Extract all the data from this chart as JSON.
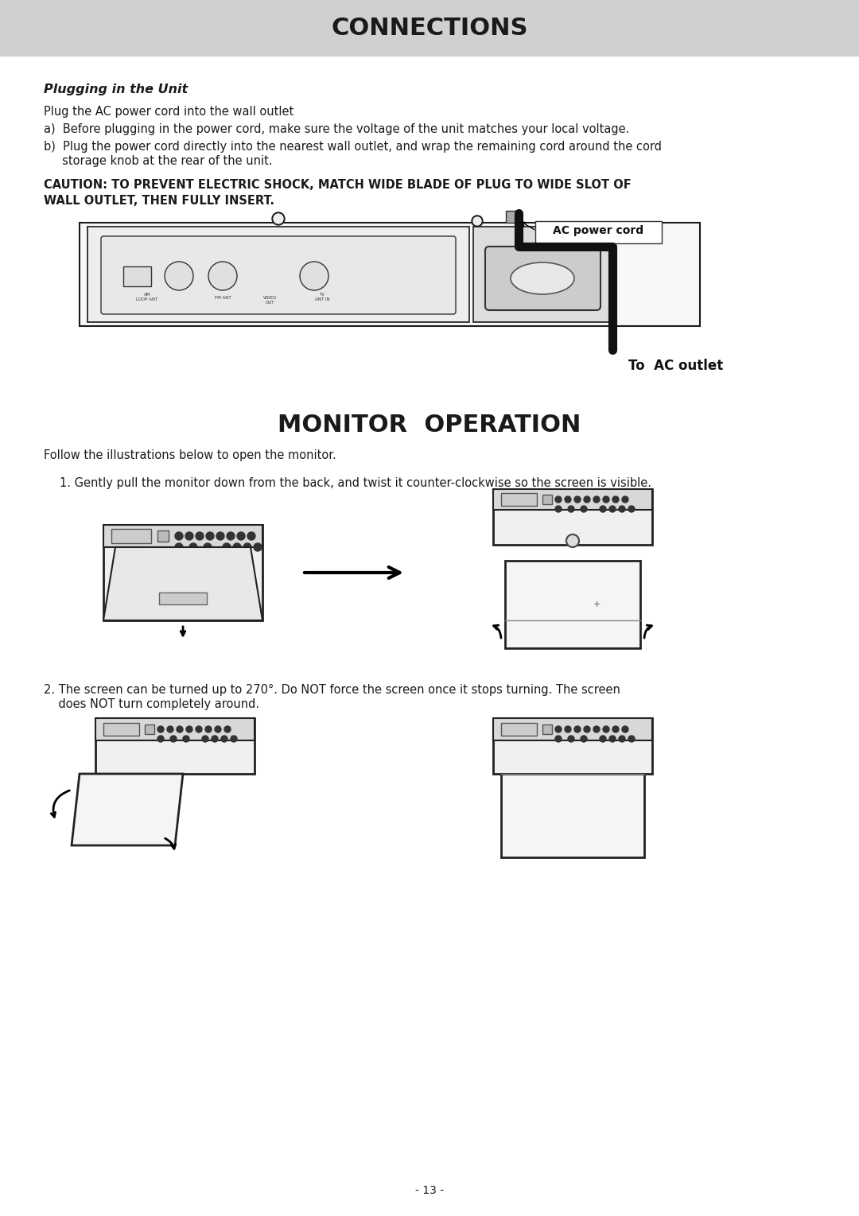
{
  "page_bg": "#ffffff",
  "header_bg": "#d0d0d0",
  "header_text": "CONNECTIONS",
  "header_text_color": "#1a1a1a",
  "header_fontsize": 22,
  "section1_title": "Plugging in the Unit",
  "section1_intro": "Plug the AC power cord into the wall outlet",
  "section1_a": "a)  Before plugging in the power cord, make sure the voltage of the unit matches your local voltage.",
  "section1_b1": "b)  Plug the power cord directly into the nearest wall outlet, and wrap the remaining cord around the cord",
  "section1_b2": "     storage knob at the rear of the unit.",
  "section1_caution": "CAUTION: TO PREVENT ELECTRIC SHOCK, MATCH WIDE BLADE OF PLUG TO WIDE SLOT OF\nWALL OUTLET, THEN FULLY INSERT.",
  "ac_power_cord_label": "AC power cord",
  "to_ac_outlet_label": "To  AC outlet",
  "section2_title": "MONITOR  OPERATION",
  "section2_intro": "Follow the illustrations below to open the monitor.",
  "step1_text": "1. Gently pull the monitor down from the back, and twist it counter-clockwise so the screen is visible.",
  "step2_text1": "2. The screen can be turned up to 270°. Do NOT force the screen once it stops turning. The screen",
  "step2_text2": "    does NOT turn completely around.",
  "page_num": "- 13 -",
  "text_color": "#1a1a1a",
  "body_fontsize": 10.5,
  "caution_fontsize": 10.5
}
